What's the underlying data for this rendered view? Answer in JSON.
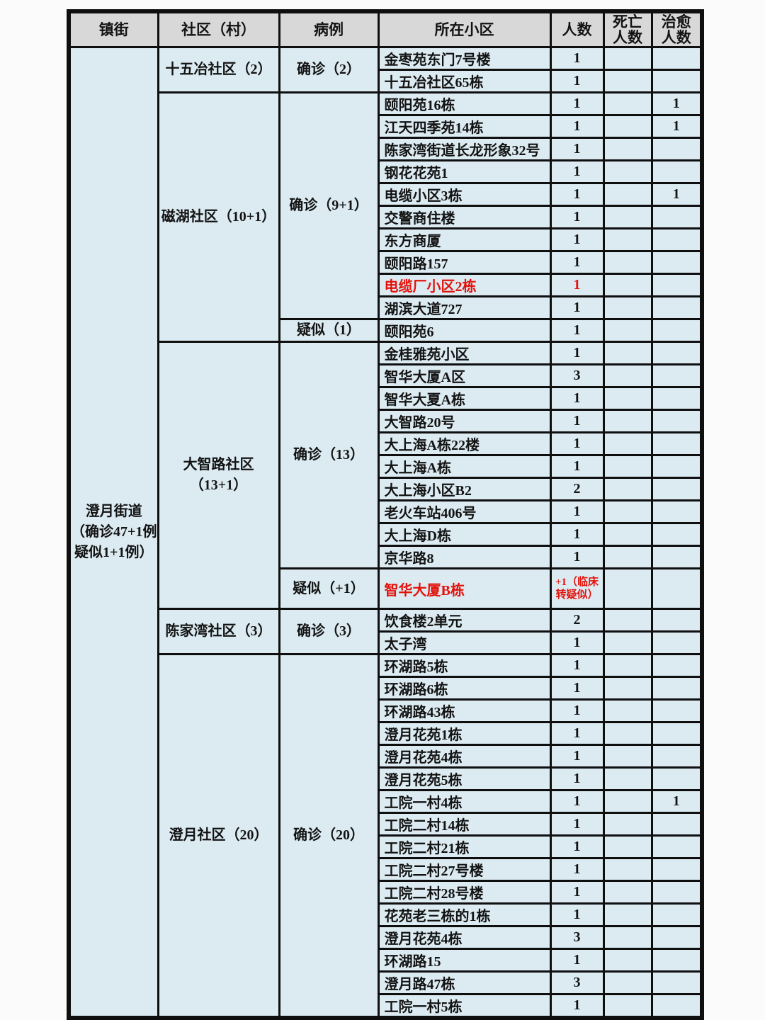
{
  "table": {
    "columns": {
      "town": "镇街",
      "community": "社区（村）",
      "case": "病例",
      "location": "所在小区",
      "count": "人数",
      "death": "死亡\n人数",
      "cured": "治愈\n人数"
    },
    "town": "澄月街道\n（确诊47+1例\n疑似1+1例）",
    "groups": [
      {
        "community": "十五冶社区（2）",
        "blocks": [
          {
            "case": "确诊（2）",
            "rows": [
              {
                "loc": "金枣苑东门7号楼",
                "n": "1"
              },
              {
                "loc": "十五冶社区65栋",
                "n": "1"
              }
            ]
          }
        ]
      },
      {
        "community": "磁湖社区（10+1）",
        "blocks": [
          {
            "case": "确诊（9+1）",
            "rows": [
              {
                "loc": "颐阳苑16栋",
                "n": "1",
                "cured": "1"
              },
              {
                "loc": "江天四季苑14栋",
                "n": "1",
                "cured": "1"
              },
              {
                "loc": "陈家湾街道长龙形象32号",
                "n": "1"
              },
              {
                "loc": "钢花花苑1",
                "n": "1"
              },
              {
                "loc": "电缆小区3栋",
                "n": "1",
                "cured": "1"
              },
              {
                "loc": "交警商住楼",
                "n": "1"
              },
              {
                "loc": "东方商厦",
                "n": "1"
              },
              {
                "loc": "颐阳路157",
                "n": "1"
              },
              {
                "loc": "电缆厂小区2栋",
                "n": "1",
                "red": true
              },
              {
                "loc": "湖滨大道727",
                "n": "1"
              }
            ]
          },
          {
            "case": "疑似（1）",
            "rows": [
              {
                "loc": "颐阳苑6",
                "n": "1"
              }
            ]
          }
        ]
      },
      {
        "community": "大智路社区\n（13+1）",
        "blocks": [
          {
            "case": "确诊（13）",
            "rows": [
              {
                "loc": "金桂雅苑小区",
                "n": "1"
              },
              {
                "loc": "智华大厦A区",
                "n": "3"
              },
              {
                "loc": "智华大夏A栋",
                "n": "1"
              },
              {
                "loc": "大智路20号",
                "n": "1"
              },
              {
                "loc": "大上海A栋22楼",
                "n": "1"
              },
              {
                "loc": "大上海A栋",
                "n": "1"
              },
              {
                "loc": "大上海小区B2",
                "n": "2"
              },
              {
                "loc": "老火车站406号",
                "n": "1"
              },
              {
                "loc": "大上海D栋",
                "n": "1"
              },
              {
                "loc": "京华路8",
                "n": "1"
              }
            ]
          },
          {
            "case": "疑似（+1）",
            "rows": [
              {
                "loc": "智华大厦B栋",
                "n": "+1（临床\n转疑似）",
                "red": true,
                "tall": true
              }
            ]
          }
        ]
      },
      {
        "community": "陈家湾社区（3）",
        "blocks": [
          {
            "case": "确诊（3）",
            "rows": [
              {
                "loc": "饮食楼2单元",
                "n": "2"
              },
              {
                "loc": "太子湾",
                "n": "1"
              }
            ]
          }
        ]
      },
      {
        "community": "澄月社区（20）",
        "blocks": [
          {
            "case": "确诊（20）",
            "rows": [
              {
                "loc": "环湖路5栋",
                "n": "1"
              },
              {
                "loc": "环湖路6栋",
                "n": "1"
              },
              {
                "loc": "环湖路43栋",
                "n": "1"
              },
              {
                "loc": "澄月花苑1栋",
                "n": "1"
              },
              {
                "loc": "澄月花苑4栋",
                "n": "1"
              },
              {
                "loc": "澄月花苑5栋",
                "n": "1"
              },
              {
                "loc": "工院一村4栋",
                "n": "1",
                "cured": "1"
              },
              {
                "loc": "工院二村14栋",
                "n": "1"
              },
              {
                "loc": "工院二村21栋",
                "n": "1"
              },
              {
                "loc": "工院二村27号楼",
                "n": "1"
              },
              {
                "loc": "工院二村28号楼",
                "n": "1"
              },
              {
                "loc": "花苑老三栋的1栋",
                "n": "1"
              },
              {
                "loc": "澄月花苑4栋",
                "n": "3"
              },
              {
                "loc": "环湖路15",
                "n": "1"
              },
              {
                "loc": "澄月路47栋",
                "n": "3"
              },
              {
                "loc": "工院一村5栋",
                "n": "1"
              }
            ]
          }
        ]
      }
    ],
    "colors": {
      "cell_bg": "#dcebf2",
      "header_bg": "#d8d8d8",
      "border": "#0f0f0f",
      "red_text": "#e3120b",
      "text": "#131313"
    }
  }
}
